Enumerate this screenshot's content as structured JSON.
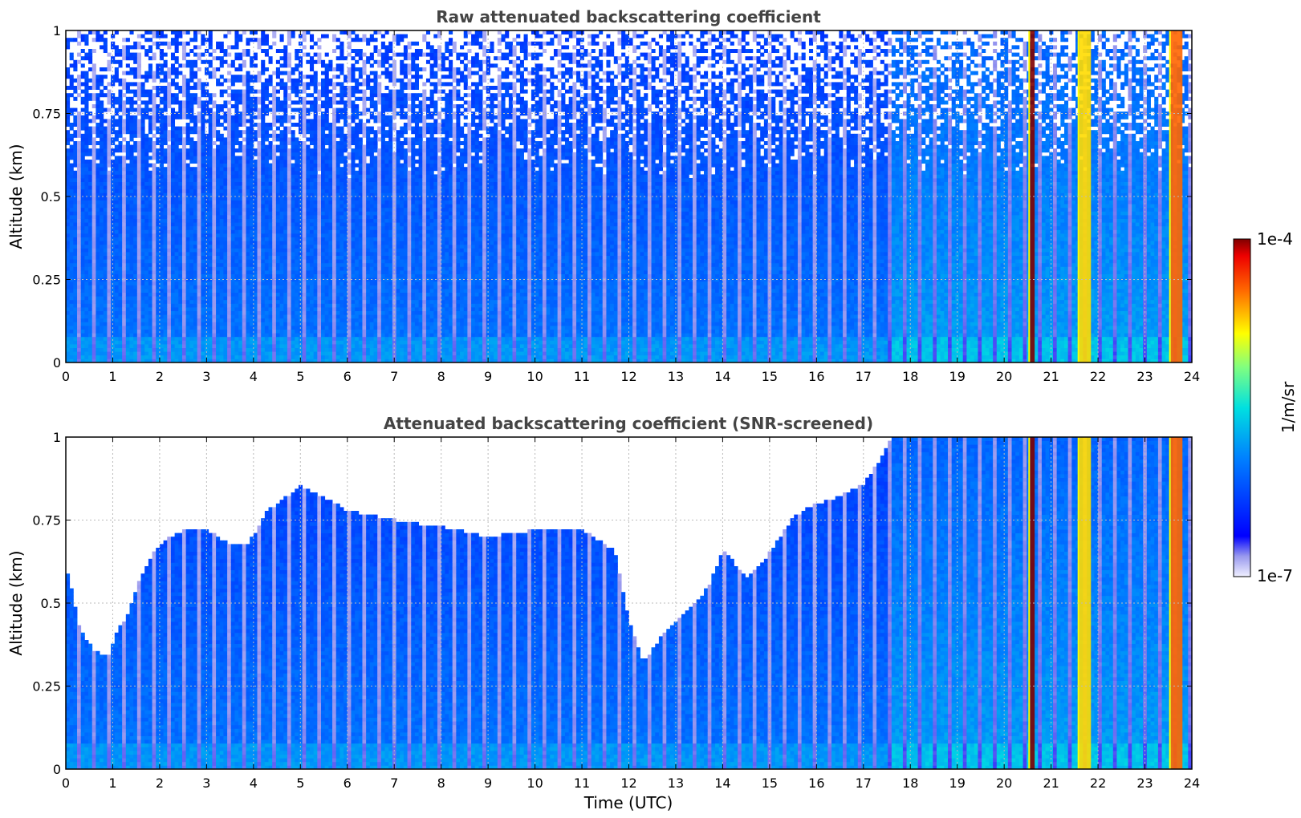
{
  "chart_data": [
    {
      "type": "heatmap",
      "title": "Raw attenuated backscattering coefficient",
      "xlabel": "",
      "ylabel": "Altitude (km)",
      "xlim": [
        0,
        24
      ],
      "ylim": [
        0,
        1
      ],
      "x_ticks": [
        "0",
        "1",
        "2",
        "3",
        "4",
        "5",
        "6",
        "7",
        "8",
        "9",
        "10",
        "11",
        "12",
        "13",
        "14",
        "15",
        "16",
        "17",
        "18",
        "19",
        "20",
        "21",
        "22",
        "23",
        "24"
      ],
      "y_ticks": [
        "0",
        "0.25",
        "0.5",
        "0.75",
        "1"
      ],
      "grid": true,
      "screened": false,
      "signal_background_level": 0.33,
      "signal_enhanced_from_hour": 17.5,
      "features": [
        {
          "label": "aerosol layer",
          "x_start": 20.55,
          "x_end": 20.65,
          "level": 1.0
        },
        {
          "label": "aerosol layer",
          "x_start": 21.6,
          "x_end": 21.85,
          "level": 0.75
        },
        {
          "label": "aerosol layer",
          "x_start": 23.55,
          "x_end": 23.8,
          "level": 0.85
        }
      ]
    },
    {
      "type": "heatmap",
      "title": "Attenuated backscattering coefficient (SNR-screened)",
      "xlabel": "Time (UTC)",
      "ylabel": "Altitude (km)",
      "xlim": [
        0,
        24
      ],
      "ylim": [
        0,
        1
      ],
      "x_ticks": [
        "0",
        "1",
        "2",
        "3",
        "4",
        "5",
        "6",
        "7",
        "8",
        "9",
        "10",
        "11",
        "12",
        "13",
        "14",
        "15",
        "16",
        "17",
        "18",
        "19",
        "20",
        "21",
        "22",
        "23",
        "24"
      ],
      "y_ticks": [
        "0",
        "0.25",
        "0.5",
        "0.75",
        "1"
      ],
      "grid": true,
      "screened": true,
      "signal_background_level": 0.33,
      "signal_enhanced_from_hour": 17.5,
      "valid_data_top_km": {
        "hours": [
          0,
          0.3,
          0.6,
          0.9,
          1.1,
          1.3,
          1.6,
          2.0,
          2.5,
          3.0,
          3.5,
          3.9,
          4.3,
          5.0,
          5.5,
          6.0,
          7.0,
          8.0,
          9.0,
          10.0,
          11.0,
          11.7,
          12.0,
          12.3,
          12.8,
          13.3,
          13.7,
          14.0,
          14.5,
          15.0,
          15.5,
          16.0,
          16.5,
          17.0,
          17.3,
          17.6,
          24
        ],
        "altitude": [
          0.62,
          0.42,
          0.36,
          0.34,
          0.42,
          0.46,
          0.58,
          0.68,
          0.72,
          0.72,
          0.68,
          0.68,
          0.78,
          0.85,
          0.82,
          0.78,
          0.75,
          0.73,
          0.7,
          0.72,
          0.72,
          0.66,
          0.45,
          0.32,
          0.42,
          0.48,
          0.55,
          0.66,
          0.58,
          0.65,
          0.76,
          0.8,
          0.82,
          0.86,
          0.92,
          1.0,
          1.0
        ]
      },
      "features": [
        {
          "label": "aerosol layer",
          "x_start": 20.55,
          "x_end": 20.65,
          "level": 1.0
        },
        {
          "label": "aerosol layer",
          "x_start": 21.6,
          "x_end": 21.85,
          "level": 0.75
        },
        {
          "label": "aerosol layer",
          "x_start": 23.55,
          "x_end": 23.8,
          "level": 0.85
        }
      ]
    }
  ],
  "colorbar": {
    "label": "1/m/sr",
    "max_label": "1e-4",
    "min_label": "1e-7",
    "scale": "log",
    "range": [
      1e-07,
      0.0001
    ],
    "colormap": "jet"
  }
}
